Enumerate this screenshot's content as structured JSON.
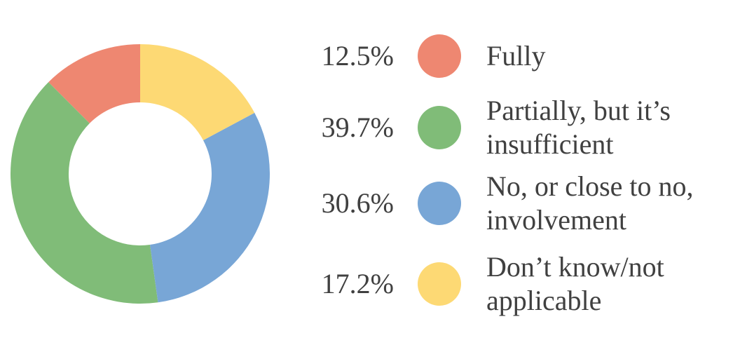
{
  "chart_data": {
    "type": "donut",
    "categories": [
      "Fully",
      "Partially, but it’s insufficient",
      "No, or close to no, involvement",
      "Don’t know/not applicable"
    ],
    "values": [
      12.5,
      39.7,
      30.6,
      17.2
    ],
    "value_labels": [
      "12.5%",
      "39.7%",
      "30.6%",
      "17.2%"
    ],
    "colors": [
      "#ee8771",
      "#80bc78",
      "#78a6d6",
      "#fdd974"
    ]
  }
}
